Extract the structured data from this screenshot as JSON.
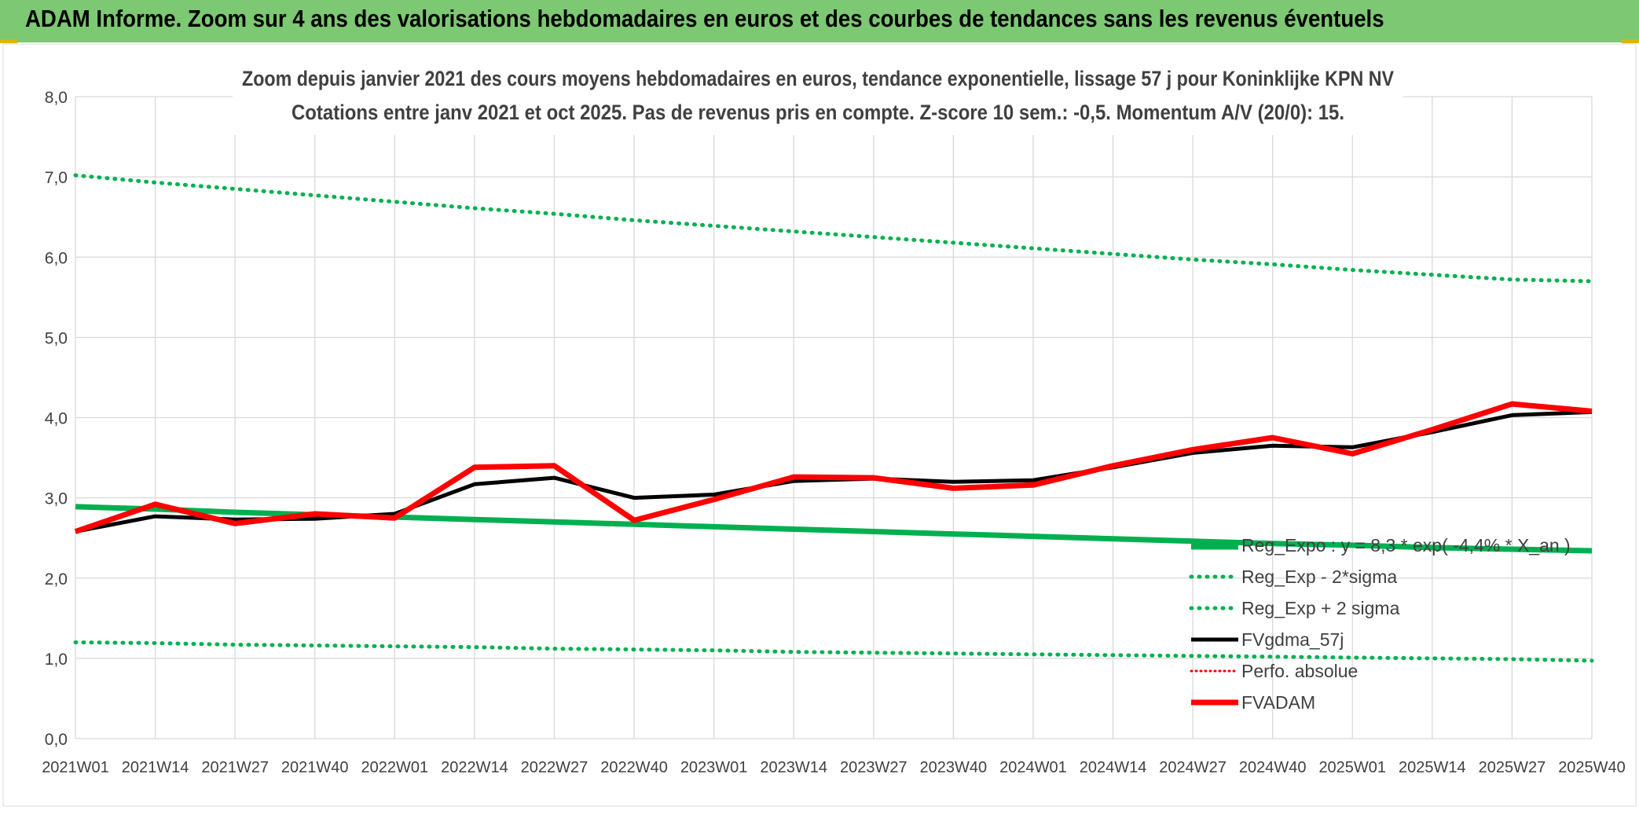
{
  "banner": {
    "title": "ADAM Informe. Zoom sur 4 ans des valorisations hebdomadaires en euros et des courbes de tendances sans les revenus éventuels"
  },
  "colors": {
    "banner_bg": "#7dc873",
    "reg_green": "#00b050",
    "fvgdma": "#000000",
    "fvadam": "#ff0000",
    "perfo": "#ff0000"
  },
  "chart_data": {
    "type": "line",
    "title_line1": "Zoom depuis janvier 2021 des cours moyens hebdomadaires en euros, tendance exponentielle, lissage 57 j pour Koninklijke KPN NV",
    "title_line2": "Cotations entre janv 2021 et oct 2025. Pas de revenus pris en compte. Z-score 10 sem.: -0,5. Momentum A/V (20/0): 15.",
    "ylim": [
      0,
      8
    ],
    "yticks": [
      "0,0",
      "1,0",
      "2,0",
      "3,0",
      "4,0",
      "5,0",
      "6,0",
      "7,0",
      "8,0"
    ],
    "x_tick_labels": [
      "2021W01",
      "2021W14",
      "2021W27",
      "2021W40",
      "2022W01",
      "2022W14",
      "2022W27",
      "2022W40",
      "2023W01",
      "2023W14",
      "2023W27",
      "2023W40",
      "2024W01",
      "2024W14",
      "2024W27",
      "2024W40",
      "2025W01",
      "2025W14",
      "2025W27",
      "2025W40"
    ],
    "x_points": [
      "2021W01",
      "2021W14",
      "2021W27",
      "2021W40",
      "2022W01",
      "2022W14",
      "2022W27",
      "2022W40",
      "2023W01",
      "2023W14",
      "2023W27",
      "2023W40",
      "2024W01",
      "2024W14",
      "2024W27",
      "2024W40",
      "2025W01",
      "2025W14",
      "2025W27",
      "2025W40"
    ],
    "legend": [
      {
        "key": "reg_expo",
        "label": "Reg_Expo : y = 8,3 * exp( -4,4% * X_an )"
      },
      {
        "key": "reg_minus",
        "label": "Reg_Exp - 2*sigma"
      },
      {
        "key": "reg_plus",
        "label": "Reg_Exp + 2 sigma"
      },
      {
        "key": "fvgdma",
        "label": "FVgdma_57j"
      },
      {
        "key": "perfo",
        "label": "Perfo. absolue"
      },
      {
        "key": "fvadam",
        "label": "FVADAM"
      }
    ],
    "series": [
      {
        "name": "Reg_Expo",
        "key": "reg_expo",
        "style": "thick",
        "values": [
          2.89,
          2.86,
          2.82,
          2.79,
          2.76,
          2.73,
          2.7,
          2.67,
          2.64,
          2.61,
          2.58,
          2.55,
          2.52,
          2.49,
          2.46,
          2.43,
          2.41,
          2.38,
          2.36,
          2.34
        ]
      },
      {
        "name": "Reg_Exp - 2*sigma",
        "key": "reg_minus",
        "style": "dotted",
        "values": [
          1.2,
          1.19,
          1.17,
          1.16,
          1.15,
          1.14,
          1.12,
          1.11,
          1.1,
          1.08,
          1.07,
          1.06,
          1.05,
          1.04,
          1.03,
          1.02,
          1.01,
          1.0,
          0.99,
          0.97
        ]
      },
      {
        "name": "Reg_Exp + 2 sigma",
        "key": "reg_plus",
        "style": "dotted",
        "values": [
          7.02,
          6.93,
          6.85,
          6.77,
          6.69,
          6.61,
          6.54,
          6.46,
          6.39,
          6.32,
          6.25,
          6.18,
          6.11,
          6.04,
          5.97,
          5.91,
          5.84,
          5.78,
          5.72,
          5.7
        ]
      },
      {
        "name": "FVgdma_57j",
        "key": "fvgdma",
        "style": "solid",
        "values": [
          2.58,
          2.77,
          2.73,
          2.74,
          2.8,
          3.17,
          3.25,
          3.0,
          3.04,
          3.21,
          3.24,
          3.2,
          3.22,
          3.38,
          3.56,
          3.65,
          3.63,
          3.82,
          4.03,
          4.07
        ]
      },
      {
        "name": "FVADAM",
        "key": "fvadam",
        "style": "bold",
        "values": [
          2.58,
          2.92,
          2.68,
          2.8,
          2.75,
          3.38,
          3.4,
          2.72,
          2.98,
          3.26,
          3.25,
          3.12,
          3.16,
          3.4,
          3.6,
          3.75,
          3.55,
          3.85,
          4.17,
          4.08
        ]
      }
    ]
  }
}
